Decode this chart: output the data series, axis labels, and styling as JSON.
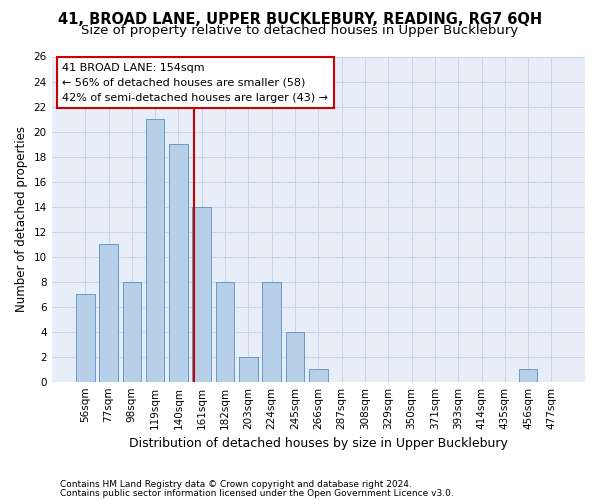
{
  "title1": "41, BROAD LANE, UPPER BUCKLEBURY, READING, RG7 6QH",
  "title2": "Size of property relative to detached houses in Upper Bucklebury",
  "xlabel": "Distribution of detached houses by size in Upper Bucklebury",
  "ylabel": "Number of detached properties",
  "bin_labels": [
    "56sqm",
    "77sqm",
    "98sqm",
    "119sqm",
    "140sqm",
    "161sqm",
    "182sqm",
    "203sqm",
    "224sqm",
    "245sqm",
    "266sqm",
    "287sqm",
    "308sqm",
    "329sqm",
    "350sqm",
    "371sqm",
    "393sqm",
    "414sqm",
    "435sqm",
    "456sqm",
    "477sqm"
  ],
  "bar_heights": [
    7,
    11,
    8,
    21,
    19,
    14,
    8,
    2,
    8,
    4,
    1,
    0,
    0,
    0,
    0,
    0,
    0,
    0,
    0,
    1,
    0
  ],
  "bar_color": "#b8cfe8",
  "bar_edge_color": "#6699cc",
  "grid_color": "#c8d4e8",
  "bg_color": "#e8eef8",
  "vline_color": "#cc0000",
  "annotation_text": "41 BROAD LANE: 154sqm\n← 56% of detached houses are smaller (58)\n42% of semi-detached houses are larger (43) →",
  "annotation_box_color": "#ffffff",
  "annotation_box_edge": "#cc0000",
  "ylim": [
    0,
    26
  ],
  "yticks": [
    0,
    2,
    4,
    6,
    8,
    10,
    12,
    14,
    16,
    18,
    20,
    22,
    24,
    26
  ],
  "footnote1": "Contains HM Land Registry data © Crown copyright and database right 2024.",
  "footnote2": "Contains public sector information licensed under the Open Government Licence v3.0.",
  "title1_fontsize": 10.5,
  "title2_fontsize": 9.5,
  "xlabel_fontsize": 9,
  "ylabel_fontsize": 8.5,
  "tick_fontsize": 7.5,
  "annotation_fontsize": 8,
  "footnote_fontsize": 6.5
}
